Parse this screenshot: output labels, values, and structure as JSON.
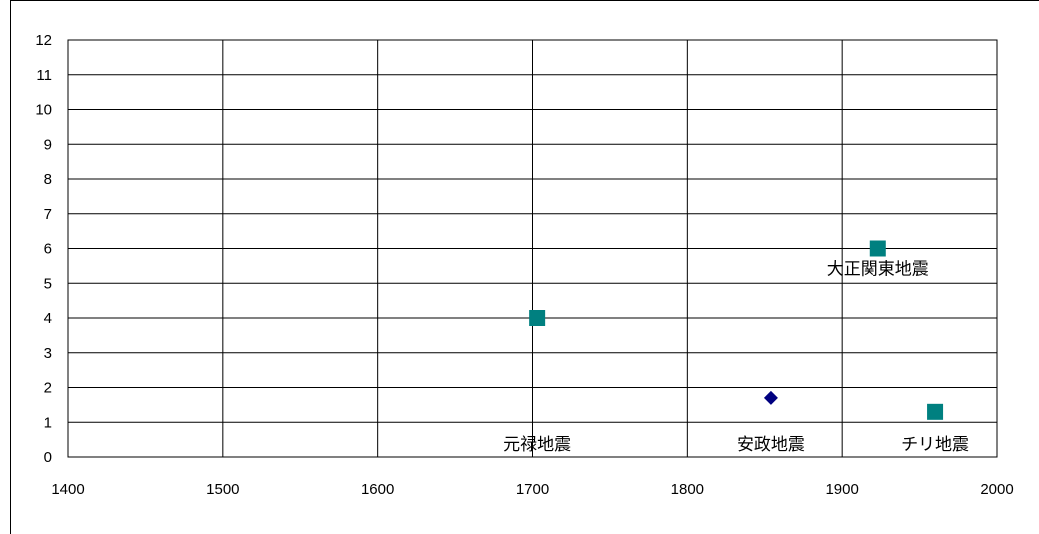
{
  "chart_data": {
    "type": "scatter",
    "title": "",
    "xlabel": "",
    "ylabel": "",
    "xlim": [
      1400,
      2000
    ],
    "ylim": [
      0,
      12
    ],
    "x_ticks": [
      1400,
      1500,
      1600,
      1700,
      1800,
      1900,
      2000
    ],
    "y_ticks": [
      0,
      1,
      2,
      3,
      4,
      5,
      6,
      7,
      8,
      9,
      10,
      11,
      12
    ],
    "grid": true,
    "legend": "none",
    "series": [
      {
        "marker": "diamond",
        "color": "#000080",
        "points": [
          {
            "x": 1854,
            "y": 1.7
          }
        ]
      },
      {
        "marker": "square",
        "color": "#008080",
        "points": [
          {
            "x": 1703,
            "y": 4.0
          },
          {
            "x": 1923,
            "y": 6.0
          },
          {
            "x": 1960,
            "y": 1.3
          }
        ]
      }
    ],
    "annotations": [
      {
        "text": "元禄地震",
        "x": 1703,
        "y": 0.15
      },
      {
        "text": "安政地震",
        "x": 1854,
        "y": 0.15
      },
      {
        "text": "大正関東地震",
        "x": 1923,
        "y": 5.2
      },
      {
        "text": "チリ地震",
        "x": 1960,
        "y": 0.15
      }
    ]
  }
}
